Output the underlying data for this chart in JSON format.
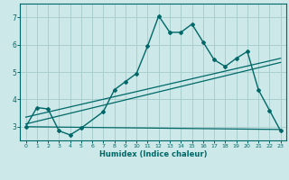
{
  "title": "",
  "xlabel": "Humidex (Indice chaleur)",
  "bg_color": "#cce8e8",
  "grid_color": "#aacece",
  "line_color": "#006868",
  "xlim": [
    -0.5,
    23.5
  ],
  "ylim": [
    2.5,
    7.5
  ],
  "xticks": [
    0,
    1,
    2,
    3,
    4,
    5,
    6,
    7,
    8,
    9,
    10,
    11,
    12,
    13,
    14,
    15,
    16,
    17,
    18,
    19,
    20,
    21,
    22,
    23
  ],
  "yticks": [
    3,
    4,
    5,
    6,
    7
  ],
  "line1_x": [
    0,
    1,
    2,
    3,
    4,
    5,
    7,
    8,
    9,
    10,
    11,
    12,
    13,
    14,
    15,
    16,
    17,
    18,
    19,
    20,
    21,
    22,
    23
  ],
  "line1_y": [
    3.0,
    3.7,
    3.65,
    2.85,
    2.7,
    2.95,
    3.55,
    4.35,
    4.65,
    4.95,
    5.95,
    7.05,
    6.45,
    6.45,
    6.75,
    6.1,
    5.45,
    5.2,
    5.5,
    5.75,
    4.35,
    3.6,
    2.85
  ],
  "line2_x": [
    0,
    23
  ],
  "line2_y": [
    3.0,
    2.9
  ],
  "line3_x": [
    0,
    23
  ],
  "line3_y": [
    3.1,
    5.35
  ],
  "line4_x": [
    0,
    23
  ],
  "line4_y": [
    3.35,
    5.5
  ]
}
